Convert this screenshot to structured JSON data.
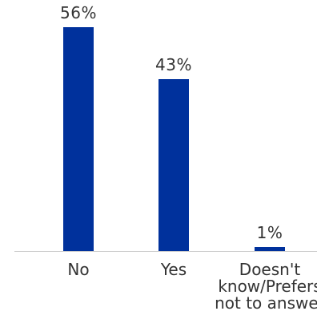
{
  "chart_data": {
    "type": "bar",
    "categories": [
      "No",
      "Yes",
      "Doesn't know/Prefers not to answer"
    ],
    "category_lines": [
      [
        "No"
      ],
      [
        "Yes"
      ],
      [
        "Doesn't",
        "know/Prefers",
        "not to answer"
      ]
    ],
    "values": [
      56,
      43,
      1
    ],
    "value_labels": [
      "56%",
      "43%",
      "1%"
    ],
    "title": "",
    "xlabel": "",
    "ylabel": "",
    "ylim": [
      0,
      60
    ],
    "grid": false,
    "bar_color": "#00319C",
    "axis_color": "#cccccc"
  }
}
